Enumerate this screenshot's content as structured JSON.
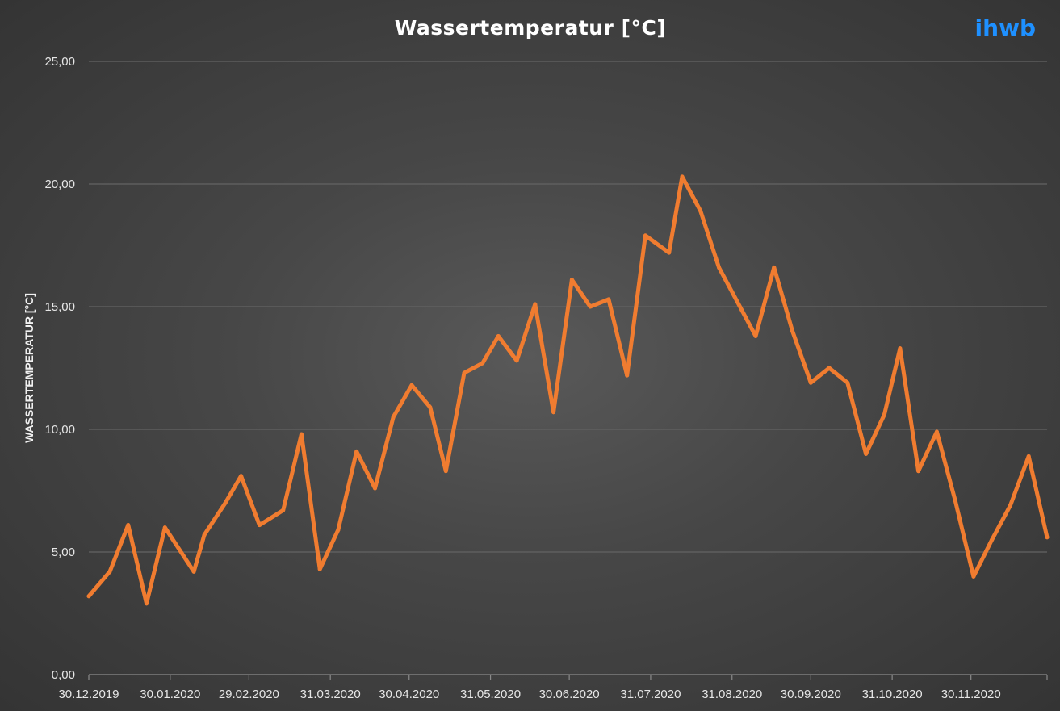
{
  "brand": {
    "text": "ihwb",
    "color": "#1e90ff"
  },
  "chart_data": {
    "type": "line",
    "title": "Wassertemperatur [°C]",
    "xlabel": "",
    "ylabel": "WASSERTEMPERATUR [°C]",
    "ylim": [
      0,
      25
    ],
    "y_ticks": [
      "0,00",
      "5,00",
      "10,00",
      "15,00",
      "20,00",
      "25,00"
    ],
    "x_ticks": [
      "30.12.2019",
      "30.01.2020",
      "29.02.2020",
      "31.03.2020",
      "30.04.2020",
      "31.05.2020",
      "30.06.2020",
      "31.07.2020",
      "31.08.2020",
      "30.09.2020",
      "31.10.2020",
      "30.11.2020"
    ],
    "grid": true,
    "line_color": "#f07c30",
    "series": [
      {
        "points": [
          [
            "2019-12-30",
            3.2
          ],
          [
            "2020-01-07",
            4.2
          ],
          [
            "2020-01-14",
            6.1
          ],
          [
            "2020-01-21",
            2.9
          ],
          [
            "2020-01-28",
            6.0
          ],
          [
            "2020-02-08",
            4.2
          ],
          [
            "2020-02-12",
            5.7
          ],
          [
            "2020-02-20",
            7.0
          ],
          [
            "2020-02-26",
            8.1
          ],
          [
            "2020-03-04",
            6.1
          ],
          [
            "2020-03-13",
            6.7
          ],
          [
            "2020-03-20",
            9.8
          ],
          [
            "2020-03-27",
            4.3
          ],
          [
            "2020-04-03",
            5.9
          ],
          [
            "2020-04-10",
            9.1
          ],
          [
            "2020-04-17",
            7.6
          ],
          [
            "2020-04-24",
            10.5
          ],
          [
            "2020-05-01",
            11.8
          ],
          [
            "2020-05-08",
            10.9
          ],
          [
            "2020-05-14",
            8.3
          ],
          [
            "2020-05-21",
            12.3
          ],
          [
            "2020-05-28",
            12.7
          ],
          [
            "2020-06-03",
            13.8
          ],
          [
            "2020-06-10",
            12.8
          ],
          [
            "2020-06-17",
            15.1
          ],
          [
            "2020-06-24",
            10.7
          ],
          [
            "2020-07-01",
            16.1
          ],
          [
            "2020-07-08",
            15.0
          ],
          [
            "2020-07-15",
            15.3
          ],
          [
            "2020-07-22",
            12.2
          ],
          [
            "2020-07-29",
            17.9
          ],
          [
            "2020-08-07",
            17.2
          ],
          [
            "2020-08-12",
            20.3
          ],
          [
            "2020-08-19",
            18.9
          ],
          [
            "2020-08-26",
            16.6
          ],
          [
            "2020-09-02",
            15.2
          ],
          [
            "2020-09-09",
            13.8
          ],
          [
            "2020-09-16",
            16.6
          ],
          [
            "2020-09-23",
            14.0
          ],
          [
            "2020-09-30",
            11.9
          ],
          [
            "2020-10-07",
            12.5
          ],
          [
            "2020-10-14",
            11.9
          ],
          [
            "2020-10-21",
            9.0
          ],
          [
            "2020-10-28",
            10.6
          ],
          [
            "2020-11-03",
            13.3
          ],
          [
            "2020-11-10",
            8.3
          ],
          [
            "2020-11-17",
            9.9
          ],
          [
            "2020-11-24",
            7.1
          ],
          [
            "2020-12-01",
            4.0
          ],
          [
            "2020-12-08",
            5.5
          ],
          [
            "2020-12-15",
            6.9
          ],
          [
            "2020-12-22",
            8.9
          ],
          [
            "2020-12-29",
            5.6
          ]
        ]
      }
    ]
  }
}
